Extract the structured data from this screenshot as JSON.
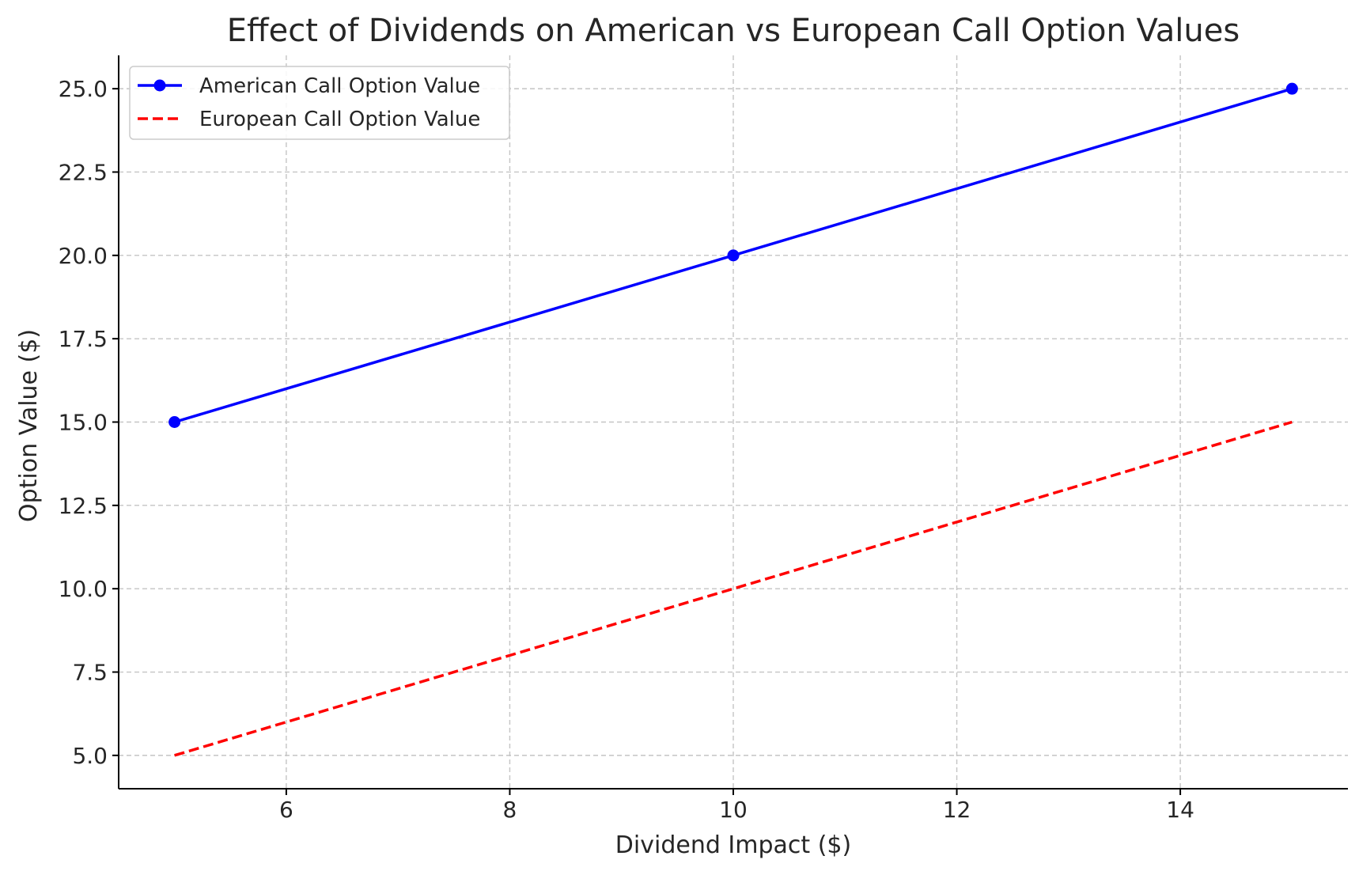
{
  "chart_data": {
    "type": "line",
    "title": "Effect of Dividends on American vs European Call Option Values",
    "xlabel": "Dividend Impact ($)",
    "ylabel": "Option Value ($)",
    "xlim": [
      4.5,
      15.5
    ],
    "ylim": [
      4.0,
      26.0
    ],
    "x_ticks": [
      6,
      8,
      10,
      12,
      14
    ],
    "x_tick_labels": [
      "6",
      "8",
      "10",
      "12",
      "14"
    ],
    "y_ticks": [
      5.0,
      7.5,
      10.0,
      12.5,
      15.0,
      17.5,
      20.0,
      22.5,
      25.0
    ],
    "y_tick_labels": [
      "5.0",
      "7.5",
      "10.0",
      "12.5",
      "15.0",
      "17.5",
      "20.0",
      "22.5",
      "25.0"
    ],
    "grid": true,
    "legend_position": "top-left",
    "x": [
      5,
      10,
      15
    ],
    "series": [
      {
        "name": "American Call Option Value",
        "values": [
          15,
          20,
          25
        ],
        "color": "#0000ff",
        "line_style": "solid",
        "marker": "circle"
      },
      {
        "name": "European Call Option Value",
        "values": [
          5,
          10,
          15
        ],
        "color": "#ff0000",
        "line_style": "dashed",
        "marker": "none"
      }
    ]
  }
}
